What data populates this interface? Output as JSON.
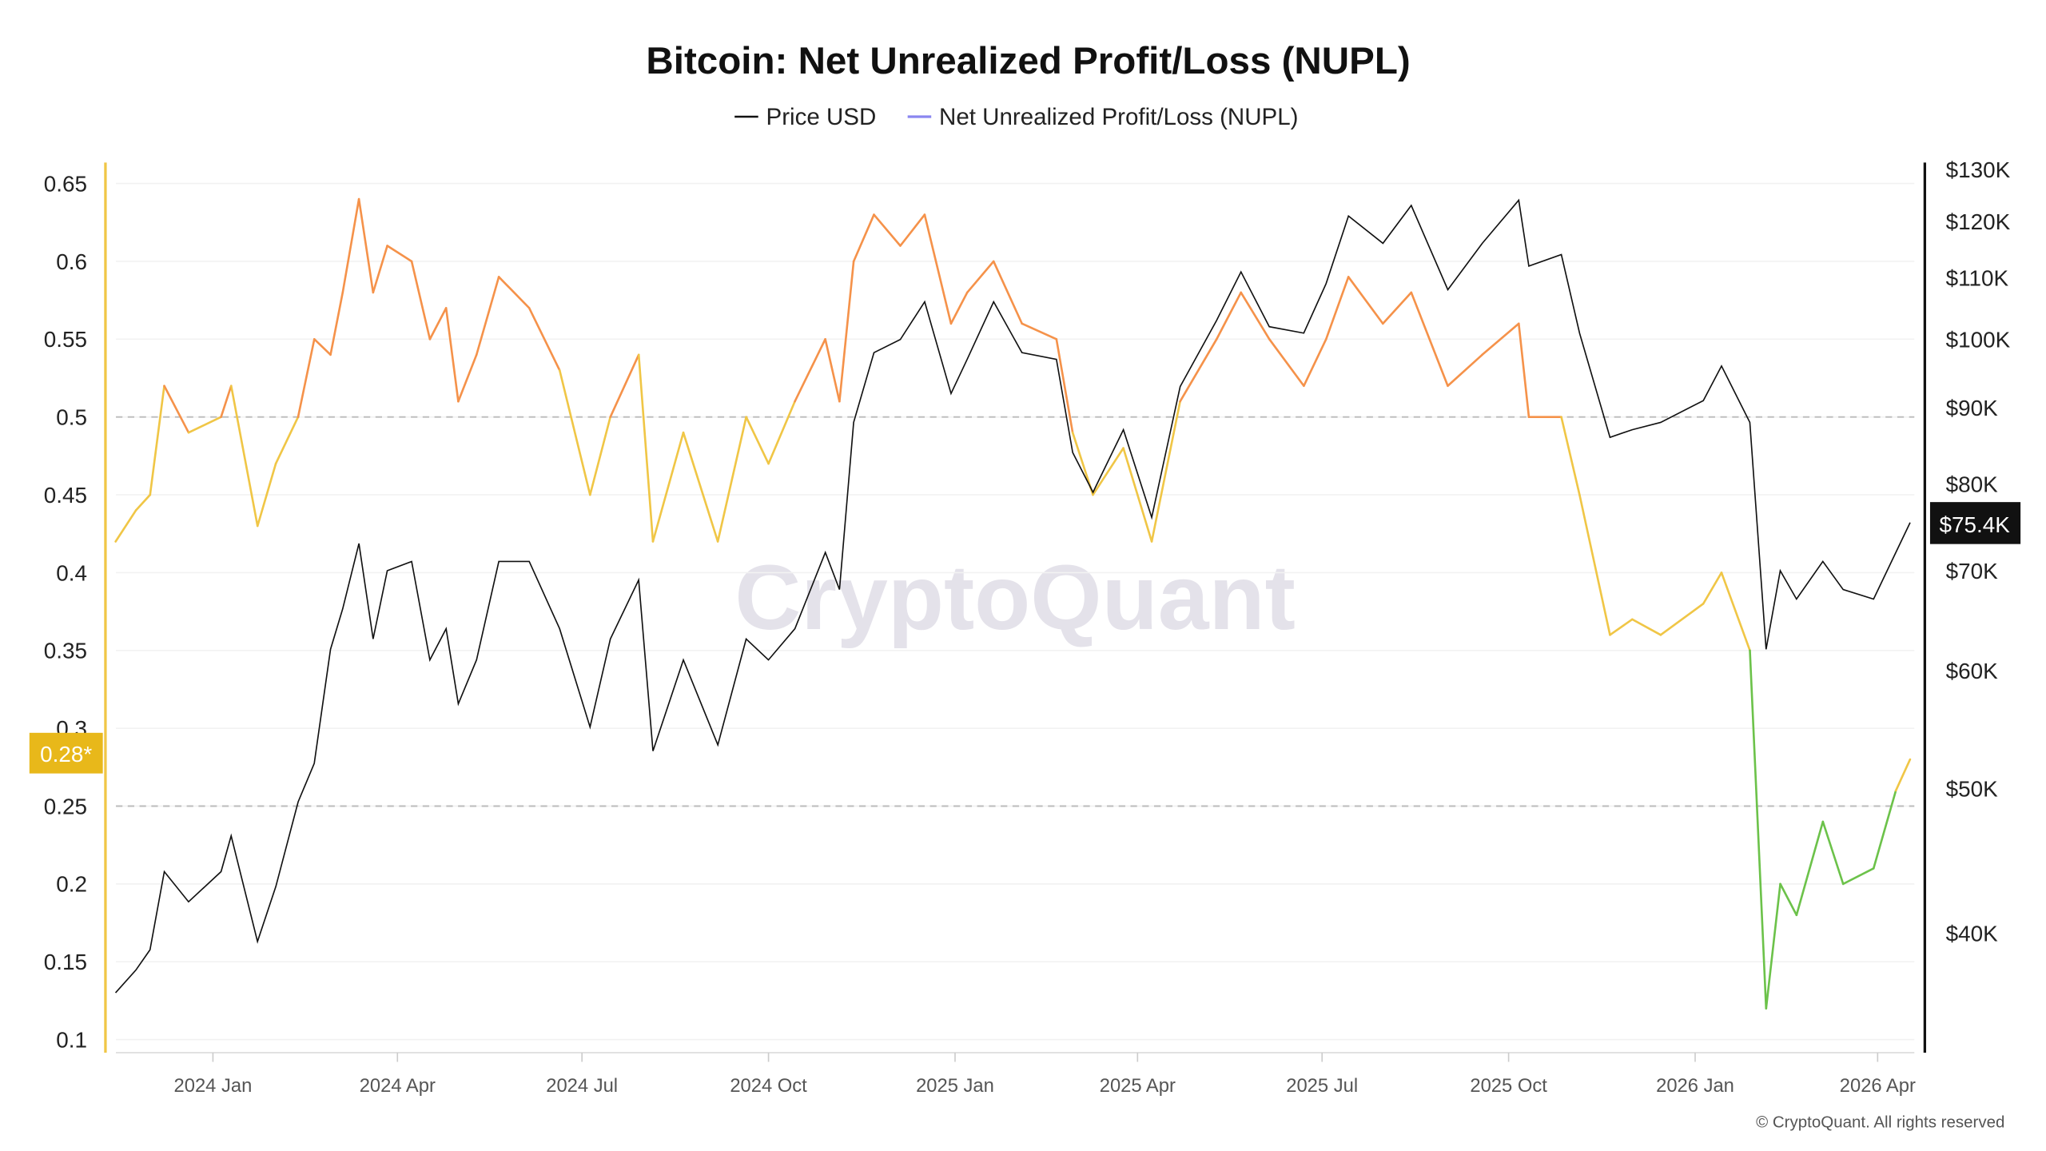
{
  "chart_data": {
    "type": "line",
    "title": "Bitcoin: Net Unrealized Profit/Loss (NUPL)",
    "legend": [
      "Price USD",
      "Net Unrealized Profit/Loss (NUPL)"
    ],
    "legend_placement": "top-center",
    "watermark": "CryptoQuant",
    "copyright": "© CryptoQuant. All rights reserved",
    "left_axis": {
      "ticks": [
        0.1,
        0.15,
        0.2,
        0.25,
        0.3,
        0.35,
        0.4,
        0.45,
        0.5,
        0.55,
        0.6,
        0.65
      ],
      "tick_labels": [
        "0.1",
        "0.15",
        "0.2",
        "0.25",
        "0.3",
        "0.35",
        "0.4",
        "0.45",
        "0.5",
        "0.55",
        "0.6",
        "0.65"
      ],
      "range": [
        0.1,
        0.65
      ],
      "current_label": "0.28*"
    },
    "right_axis": {
      "scale": "log",
      "ticks": [
        40000,
        50000,
        60000,
        70000,
        80000,
        90000,
        100000,
        110000,
        120000,
        130000
      ],
      "tick_labels": [
        "$40K",
        "$50K",
        "$60K",
        "$70K",
        "$80K",
        "$90K",
        "$100K",
        "$110K",
        "$120K",
        "$130K"
      ],
      "current_label": "$75.4K"
    },
    "x_axis": {
      "ticks": [
        "2024-01-01",
        "2024-04-01",
        "2024-07-01",
        "2024-10-01",
        "2025-01-01",
        "2025-04-01",
        "2025-07-01",
        "2025-10-01",
        "2026-01-01",
        "2026-04-01"
      ],
      "tick_labels": [
        "2024 Jan",
        "2024 Apr",
        "2024 Jul",
        "2024 Oct",
        "2025 Jan",
        "2025 Apr",
        "2025 Jul",
        "2025 Oct",
        "2026 Jan",
        "2026 Apr"
      ]
    },
    "reference_lines": [
      0.5,
      0.25
    ],
    "colors": {
      "price": "#111111",
      "nupl_above_0.5": "#f5924a",
      "nupl_0.25_to_0.5": "#f0c646",
      "nupl_below_0.25": "#6cc24a",
      "legend_nupl": "#8a86f0",
      "left_axis": "#f0c646",
      "badge_nupl": "#e8b81a",
      "badge_price": "#111111"
    },
    "series": [
      {
        "name": "Price USD",
        "x": [
          "2023-11-14",
          "2023-11-24",
          "2023-12-01",
          "2023-12-08",
          "2023-12-20",
          "2024-01-05",
          "2024-01-10",
          "2024-01-23",
          "2024-02-01",
          "2024-02-12",
          "2024-02-20",
          "2024-02-28",
          "2024-03-05",
          "2024-03-13",
          "2024-03-20",
          "2024-03-27",
          "2024-04-08",
          "2024-04-17",
          "2024-04-25",
          "2024-05-01",
          "2024-05-10",
          "2024-05-21",
          "2024-06-05",
          "2024-06-20",
          "2024-07-05",
          "2024-07-15",
          "2024-07-29",
          "2024-08-05",
          "2024-08-20",
          "2024-09-06",
          "2024-09-20",
          "2024-10-01",
          "2024-10-14",
          "2024-10-29",
          "2024-11-05",
          "2024-11-12",
          "2024-11-22",
          "2024-12-05",
          "2024-12-17",
          "2024-12-30",
          "2025-01-07",
          "2025-01-20",
          "2025-02-03",
          "2025-02-20",
          "2025-02-28",
          "2025-03-10",
          "2025-03-25",
          "2025-04-08",
          "2025-04-22",
          "2025-05-10",
          "2025-05-22",
          "2025-06-05",
          "2025-06-22",
          "2025-07-03",
          "2025-07-14",
          "2025-07-31",
          "2025-08-14",
          "2025-09-01",
          "2025-09-18",
          "2025-10-06",
          "2025-10-11",
          "2025-10-27",
          "2025-11-05",
          "2025-11-20",
          "2025-12-01",
          "2025-12-15",
          "2026-01-05",
          "2026-01-14",
          "2026-01-28",
          "2026-02-05",
          "2026-02-12",
          "2026-02-20",
          "2026-03-05",
          "2026-03-15",
          "2026-03-30",
          "2026-04-10",
          "2026-04-17"
        ],
        "values": [
          36500,
          37800,
          39000,
          44000,
          42000,
          44000,
          46500,
          39500,
          43000,
          49000,
          52000,
          62000,
          66000,
          73000,
          63000,
          70000,
          71000,
          61000,
          64000,
          57000,
          61000,
          71000,
          71000,
          64000,
          55000,
          63000,
          69000,
          53000,
          61000,
          53500,
          63000,
          61000,
          64000,
          72000,
          68000,
          88000,
          98000,
          100000,
          106000,
          92000,
          97000,
          106000,
          98000,
          97000,
          84000,
          79000,
          87000,
          76000,
          93000,
          103000,
          111000,
          102000,
          101000,
          109000,
          121000,
          116000,
          123000,
          108000,
          116000,
          124000,
          112000,
          114000,
          101000,
          86000,
          87000,
          88000,
          91000,
          96000,
          88000,
          62000,
          70000,
          67000,
          71000,
          68000,
          67000,
          72000,
          75400
        ]
      },
      {
        "name": "Net Unrealized Profit/Loss (NUPL)",
        "x": [
          "2023-11-14",
          "2023-11-24",
          "2023-12-01",
          "2023-12-08",
          "2023-12-20",
          "2024-01-05",
          "2024-01-10",
          "2024-01-23",
          "2024-02-01",
          "2024-02-12",
          "2024-02-20",
          "2024-02-28",
          "2024-03-05",
          "2024-03-13",
          "2024-03-20",
          "2024-03-27",
          "2024-04-08",
          "2024-04-17",
          "2024-04-25",
          "2024-05-01",
          "2024-05-10",
          "2024-05-21",
          "2024-06-05",
          "2024-06-20",
          "2024-07-05",
          "2024-07-15",
          "2024-07-29",
          "2024-08-05",
          "2024-08-20",
          "2024-09-06",
          "2024-09-20",
          "2024-10-01",
          "2024-10-14",
          "2024-10-29",
          "2024-11-05",
          "2024-11-12",
          "2024-11-22",
          "2024-12-05",
          "2024-12-17",
          "2024-12-30",
          "2025-01-07",
          "2025-01-20",
          "2025-02-03",
          "2025-02-20",
          "2025-02-28",
          "2025-03-10",
          "2025-03-25",
          "2025-04-08",
          "2025-04-22",
          "2025-05-10",
          "2025-05-22",
          "2025-06-05",
          "2025-06-22",
          "2025-07-03",
          "2025-07-14",
          "2025-07-31",
          "2025-08-14",
          "2025-09-01",
          "2025-09-18",
          "2025-10-06",
          "2025-10-11",
          "2025-10-27",
          "2025-11-05",
          "2025-11-20",
          "2025-12-01",
          "2025-12-15",
          "2026-01-05",
          "2026-01-14",
          "2026-01-28",
          "2026-02-05",
          "2026-02-12",
          "2026-02-20",
          "2026-03-05",
          "2026-03-15",
          "2026-03-30",
          "2026-04-10",
          "2026-04-17"
        ],
        "values": [
          0.42,
          0.44,
          0.45,
          0.52,
          0.49,
          0.5,
          0.52,
          0.43,
          0.47,
          0.5,
          0.55,
          0.54,
          0.58,
          0.64,
          0.58,
          0.61,
          0.6,
          0.55,
          0.57,
          0.51,
          0.54,
          0.59,
          0.57,
          0.53,
          0.45,
          0.5,
          0.54,
          0.42,
          0.49,
          0.42,
          0.5,
          0.47,
          0.51,
          0.55,
          0.51,
          0.6,
          0.63,
          0.61,
          0.63,
          0.56,
          0.58,
          0.6,
          0.56,
          0.55,
          0.49,
          0.45,
          0.48,
          0.42,
          0.51,
          0.55,
          0.58,
          0.55,
          0.52,
          0.55,
          0.59,
          0.56,
          0.58,
          0.52,
          0.54,
          0.56,
          0.5,
          0.5,
          0.45,
          0.36,
          0.37,
          0.36,
          0.38,
          0.4,
          0.35,
          0.12,
          0.2,
          0.18,
          0.24,
          0.2,
          0.21,
          0.26,
          0.28
        ]
      }
    ]
  }
}
